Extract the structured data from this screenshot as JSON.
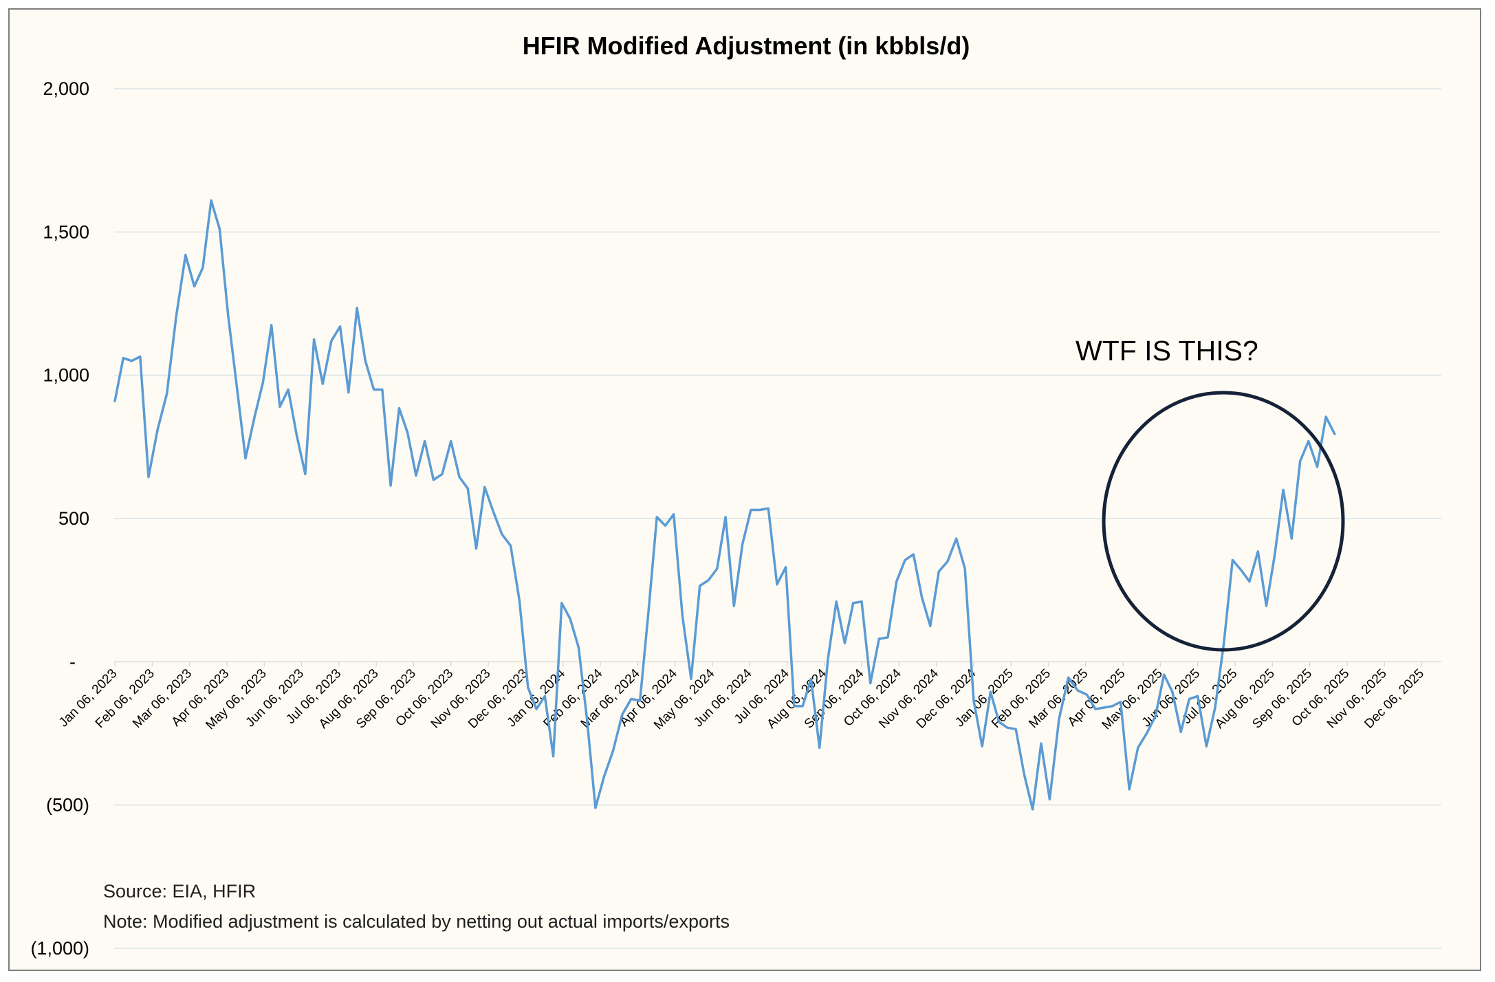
{
  "chart_data": {
    "type": "line",
    "title": "HFIR Modified Adjustment (in kbbls/d)",
    "xlabel": "",
    "ylabel": "",
    "ylim": [
      -1000,
      2000
    ],
    "y_ticks": [
      {
        "value": 2000,
        "label": "2,000"
      },
      {
        "value": 1500,
        "label": "1,500"
      },
      {
        "value": 1000,
        "label": "1,000"
      },
      {
        "value": 500,
        "label": "500"
      },
      {
        "value": 0,
        "label": "-"
      },
      {
        "value": -500,
        "label": "(500)"
      },
      {
        "value": -1000,
        "label": "(1,000)"
      }
    ],
    "x_ticks": [
      "Jan 06, 2023",
      "Feb 06, 2023",
      "Mar 06, 2023",
      "Apr 06, 2023",
      "May 06, 2023",
      "Jun 06, 2023",
      "Jul 06, 2023",
      "Aug 06, 2023",
      "Sep 06, 2023",
      "Oct 06, 2023",
      "Nov 06, 2023",
      "Dec 06, 2023",
      "Jan 06, 2024",
      "Feb 06, 2024",
      "Mar 06, 2024",
      "Apr 06, 2024",
      "May 06, 2024",
      "Jun 06, 2024",
      "Jul 06, 2024",
      "Aug 06, 2024",
      "Sep 06, 2024",
      "Oct 06, 2024",
      "Nov 06, 2024",
      "Dec 06, 2024",
      "Jan 06, 2025",
      "Feb 06, 2025",
      "Mar 06, 2025",
      "Apr 06, 2025",
      "May 06, 2025",
      "Jun 06, 2025",
      "Jul 06, 2025",
      "Aug 06, 2025",
      "Sep 06, 2025",
      "Oct 06, 2025",
      "Nov 06, 2025",
      "Dec 06, 2025"
    ],
    "series": [
      {
        "name": "",
        "color": "#5b9bd5",
        "points": [
          [
            "2023-01-06",
            910
          ],
          [
            "2023-01-13",
            1060
          ],
          [
            "2023-01-20",
            1050
          ],
          [
            "2023-01-27",
            1065
          ],
          [
            "2023-02-03",
            645
          ],
          [
            "2023-02-10",
            810
          ],
          [
            "2023-02-17",
            935
          ],
          [
            "2023-02-24",
            1205
          ],
          [
            "2023-03-03",
            1420
          ],
          [
            "2023-03-10",
            1310
          ],
          [
            "2023-03-17",
            1375
          ],
          [
            "2023-03-24",
            1610
          ],
          [
            "2023-03-31",
            1510
          ],
          [
            "2023-04-07",
            1210
          ],
          [
            "2023-04-14",
            960
          ],
          [
            "2023-04-21",
            710
          ],
          [
            "2023-04-28",
            850
          ],
          [
            "2023-05-05",
            975
          ],
          [
            "2023-05-12",
            1175
          ],
          [
            "2023-05-19",
            890
          ],
          [
            "2023-05-26",
            950
          ],
          [
            "2023-06-02",
            790
          ],
          [
            "2023-06-09",
            655
          ],
          [
            "2023-06-16",
            1125
          ],
          [
            "2023-06-23",
            970
          ],
          [
            "2023-06-30",
            1120
          ],
          [
            "2023-07-07",
            1170
          ],
          [
            "2023-07-14",
            940
          ],
          [
            "2023-07-21",
            1235
          ],
          [
            "2023-07-28",
            1050
          ],
          [
            "2023-08-04",
            950
          ],
          [
            "2023-08-11",
            950
          ],
          [
            "2023-08-18",
            615
          ],
          [
            "2023-08-25",
            885
          ],
          [
            "2023-09-01",
            800
          ],
          [
            "2023-09-08",
            650
          ],
          [
            "2023-09-15",
            770
          ],
          [
            "2023-09-22",
            635
          ],
          [
            "2023-09-29",
            655
          ],
          [
            "2023-10-06",
            770
          ],
          [
            "2023-10-13",
            645
          ],
          [
            "2023-10-20",
            605
          ],
          [
            "2023-10-27",
            395
          ],
          [
            "2023-11-03",
            610
          ],
          [
            "2023-11-10",
            525
          ],
          [
            "2023-11-17",
            445
          ],
          [
            "2023-11-24",
            405
          ],
          [
            "2023-12-01",
            215
          ],
          [
            "2023-12-08",
            -90
          ],
          [
            "2023-12-15",
            -165
          ],
          [
            "2023-12-22",
            -120
          ],
          [
            "2023-12-29",
            -330
          ],
          [
            "2024-01-05",
            205
          ],
          [
            "2024-01-12",
            150
          ],
          [
            "2024-01-19",
            50
          ],
          [
            "2024-01-26",
            -200
          ],
          [
            "2024-02-02",
            -510
          ],
          [
            "2024-02-09",
            -400
          ],
          [
            "2024-02-16",
            -310
          ],
          [
            "2024-02-23",
            -185
          ],
          [
            "2024-03-01",
            -130
          ],
          [
            "2024-03-08",
            -135
          ],
          [
            "2024-03-15",
            175
          ],
          [
            "2024-03-22",
            505
          ],
          [
            "2024-03-29",
            475
          ],
          [
            "2024-04-05",
            515
          ],
          [
            "2024-04-12",
            160
          ],
          [
            "2024-04-19",
            -60
          ],
          [
            "2024-04-26",
            265
          ],
          [
            "2024-05-03",
            285
          ],
          [
            "2024-05-10",
            325
          ],
          [
            "2024-05-17",
            505
          ],
          [
            "2024-05-24",
            195
          ],
          [
            "2024-05-31",
            410
          ],
          [
            "2024-06-07",
            530
          ],
          [
            "2024-06-14",
            530
          ],
          [
            "2024-06-21",
            535
          ],
          [
            "2024-06-28",
            270
          ],
          [
            "2024-07-05",
            330
          ],
          [
            "2024-07-12",
            -155
          ],
          [
            "2024-07-19",
            -155
          ],
          [
            "2024-07-26",
            -60
          ],
          [
            "2024-08-02",
            -300
          ],
          [
            "2024-08-09",
            10
          ],
          [
            "2024-08-16",
            210
          ],
          [
            "2024-08-23",
            65
          ],
          [
            "2024-08-30",
            205
          ],
          [
            "2024-09-06",
            210
          ],
          [
            "2024-09-13",
            -75
          ],
          [
            "2024-09-20",
            80
          ],
          [
            "2024-09-27",
            85
          ],
          [
            "2024-10-04",
            280
          ],
          [
            "2024-10-11",
            355
          ],
          [
            "2024-10-18",
            375
          ],
          [
            "2024-10-25",
            225
          ],
          [
            "2024-11-01",
            125
          ],
          [
            "2024-11-08",
            315
          ],
          [
            "2024-11-15",
            350
          ],
          [
            "2024-11-22",
            430
          ],
          [
            "2024-11-29",
            325
          ],
          [
            "2024-12-06",
            -135
          ],
          [
            "2024-12-13",
            -295
          ],
          [
            "2024-12-20",
            -105
          ],
          [
            "2024-12-27",
            -210
          ],
          [
            "2025-01-03",
            -230
          ],
          [
            "2025-01-10",
            -235
          ],
          [
            "2025-01-17",
            -395
          ],
          [
            "2025-01-24",
            -515
          ],
          [
            "2025-01-31",
            -285
          ],
          [
            "2025-02-07",
            -480
          ],
          [
            "2025-02-14",
            -200
          ],
          [
            "2025-02-21",
            -55
          ],
          [
            "2025-02-28",
            -100
          ],
          [
            "2025-03-07",
            -115
          ],
          [
            "2025-03-14",
            -165
          ],
          [
            "2025-03-21",
            -160
          ],
          [
            "2025-03-28",
            -155
          ],
          [
            "2025-04-04",
            -140
          ],
          [
            "2025-04-11",
            -445
          ],
          [
            "2025-04-18",
            -300
          ],
          [
            "2025-04-25",
            -250
          ],
          [
            "2025-05-02",
            -190
          ],
          [
            "2025-05-09",
            -45
          ],
          [
            "2025-05-16",
            -105
          ],
          [
            "2025-05-23",
            -245
          ],
          [
            "2025-05-30",
            -130
          ],
          [
            "2025-06-06",
            -120
          ],
          [
            "2025-06-13",
            -295
          ],
          [
            "2025-06-20",
            -160
          ],
          [
            "2025-06-27",
            65
          ],
          [
            "2025-07-04",
            355
          ],
          [
            "2025-07-11",
            320
          ],
          [
            "2025-07-18",
            280
          ],
          [
            "2025-07-25",
            385
          ],
          [
            "2025-08-01",
            195
          ],
          [
            "2025-08-08",
            375
          ],
          [
            "2025-08-15",
            600
          ],
          [
            "2025-08-22",
            430
          ],
          [
            "2025-08-29",
            700
          ],
          [
            "2025-09-05",
            770
          ],
          [
            "2025-09-12",
            680
          ],
          [
            "2025-09-19",
            855
          ],
          [
            "2025-09-26",
            795
          ]
        ]
      }
    ],
    "annotation": "WTF IS THIS?",
    "source": "Source: EIA, HFIR",
    "note": "Note: Modified adjustment is calculated by netting out actual imports/exports",
    "grid": true,
    "legend": "none"
  }
}
